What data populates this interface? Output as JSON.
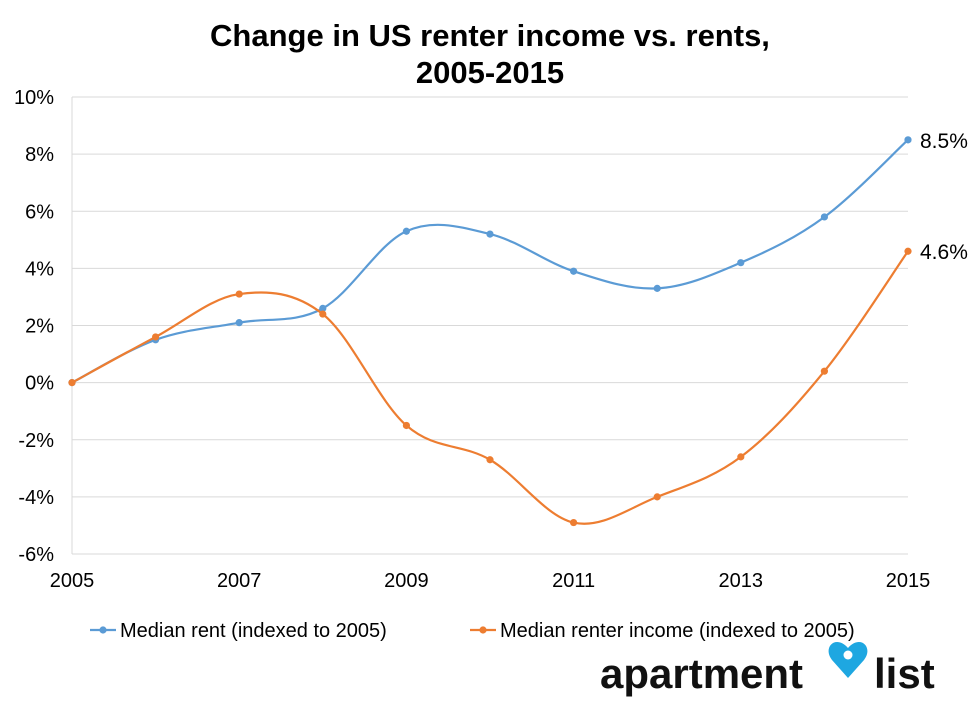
{
  "chart_data": {
    "type": "line",
    "title_lines": [
      "Change in US renter income vs. rents,",
      "2005-2015"
    ],
    "x": [
      2005,
      2006,
      2007,
      2008,
      2009,
      2010,
      2011,
      2012,
      2013,
      2014,
      2015
    ],
    "x_tick_labels": [
      "2005",
      "2007",
      "2009",
      "2011",
      "2013",
      "2015"
    ],
    "xlim": [
      2005,
      2015
    ],
    "ylim": [
      -6,
      10
    ],
    "y_tick_values": [
      -6,
      -4,
      -2,
      0,
      2,
      4,
      6,
      8,
      10
    ],
    "y_tick_labels": [
      "-6%",
      "-4%",
      "-2%",
      "0%",
      "2%",
      "4%",
      "6%",
      "8%",
      "10%"
    ],
    "grid": true,
    "legend_position": "bottom",
    "series": [
      {
        "name": "Median rent (indexed to 2005)",
        "color": "#5B9BD5",
        "values": [
          0.0,
          1.5,
          2.1,
          2.6,
          5.3,
          5.2,
          3.9,
          3.3,
          4.2,
          5.8,
          8.5
        ],
        "end_label": "8.5%"
      },
      {
        "name": "Median renter income (indexed to 2005)",
        "color": "#ED7D31",
        "values": [
          0.0,
          1.6,
          3.1,
          2.4,
          -1.5,
          -2.7,
          -4.9,
          -4.0,
          -2.6,
          0.4,
          4.6
        ],
        "end_label": "4.6%"
      }
    ]
  },
  "branding": {
    "logo_left": "apartment",
    "logo_right": "list",
    "pin_color": "#1EA7E1"
  }
}
